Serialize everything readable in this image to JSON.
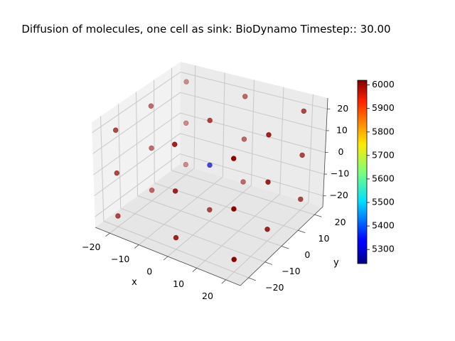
{
  "chart_data": {
    "type": "scatter",
    "projection": "3d",
    "title": "Diffusion of molecules, one cell as sink: BioDynamo Timestep:: 30.00",
    "xlabel": "x",
    "ylabel": "y",
    "zlabel": "",
    "xlim": [
      -25,
      25
    ],
    "ylim": [
      -25,
      25
    ],
    "zlim": [
      -25,
      25
    ],
    "xticks": [
      -20,
      -10,
      0,
      10,
      20
    ],
    "yticks": [
      -20,
      -10,
      0,
      10,
      20
    ],
    "zticks": [
      -20,
      -10,
      0,
      10,
      20
    ],
    "grid": true,
    "colormap": "jet",
    "colorbar": {
      "min": 5240,
      "max": 6020,
      "ticks": [
        5300,
        5400,
        5500,
        5600,
        5700,
        5800,
        5900,
        6000
      ]
    },
    "points": [
      {
        "x": -20,
        "y": -20,
        "z": -20,
        "value": 6010
      },
      {
        "x": 0,
        "y": -20,
        "z": -20,
        "value": 6010
      },
      {
        "x": 20,
        "y": -20,
        "z": -20,
        "value": 6010
      },
      {
        "x": -20,
        "y": 0,
        "z": -20,
        "value": 6010
      },
      {
        "x": 0,
        "y": 0,
        "z": -20,
        "value": 6010
      },
      {
        "x": 20,
        "y": 0,
        "z": -20,
        "value": 6010
      },
      {
        "x": -20,
        "y": 20,
        "z": -20,
        "value": 6010
      },
      {
        "x": 0,
        "y": 20,
        "z": -20,
        "value": 6010
      },
      {
        "x": 20,
        "y": 20,
        "z": -20,
        "value": 6010
      },
      {
        "x": -20,
        "y": -20,
        "z": 0,
        "value": 6010
      },
      {
        "x": 0,
        "y": -20,
        "z": 0,
        "value": 6010
      },
      {
        "x": 20,
        "y": -20,
        "z": 0,
        "value": 6010
      },
      {
        "x": -20,
        "y": 0,
        "z": 0,
        "value": 6010
      },
      {
        "x": 0,
        "y": 0,
        "z": 0,
        "value": 5300
      },
      {
        "x": 20,
        "y": 0,
        "z": 0,
        "value": 6010
      },
      {
        "x": -20,
        "y": 20,
        "z": 0,
        "value": 6010
      },
      {
        "x": 0,
        "y": 20,
        "z": 0,
        "value": 6010
      },
      {
        "x": 20,
        "y": 20,
        "z": 0,
        "value": 6010
      },
      {
        "x": -20,
        "y": -20,
        "z": 20,
        "value": 6010
      },
      {
        "x": 0,
        "y": -20,
        "z": 20,
        "value": 6010
      },
      {
        "x": 20,
        "y": -20,
        "z": 20,
        "value": 6010
      },
      {
        "x": -20,
        "y": 0,
        "z": 20,
        "value": 6010
      },
      {
        "x": 0,
        "y": 0,
        "z": 20,
        "value": 6010
      },
      {
        "x": 20,
        "y": 0,
        "z": 20,
        "value": 6010
      },
      {
        "x": -20,
        "y": 20,
        "z": 20,
        "value": 6010
      },
      {
        "x": 0,
        "y": 20,
        "z": 20,
        "value": 6010
      },
      {
        "x": 20,
        "y": 20,
        "z": 20,
        "value": 6010
      }
    ]
  }
}
